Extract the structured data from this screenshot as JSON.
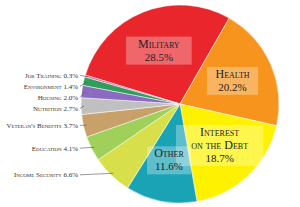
{
  "chart_data": {
    "type": "pie",
    "categories": [
      "Military",
      "Health",
      "Interest on the Debt",
      "Other",
      "Income Security",
      "Education",
      "Veteran's Benefits",
      "Nutrition",
      "Housing",
      "Environment",
      "Job Training"
    ],
    "values": [
      28.5,
      20.2,
      18.7,
      11.6,
      6.6,
      4.1,
      3.7,
      2.7,
      2.0,
      1.4,
      0.3
    ],
    "value_labels": [
      "28.5%",
      "20.2%",
      "18.7%",
      "11.6%",
      "6.6%",
      "4.1%",
      "3.7%",
      "2.7%",
      "2.0%",
      "1.4%",
      "0.3%"
    ],
    "colors": [
      "#e8262b",
      "#f7941d",
      "#fff200",
      "#1aa3b5",
      "#d7e04a",
      "#9fd05a",
      "#c8a06a",
      "#c0c0c0",
      "#8b6bbf",
      "#2e9e5a",
      "#e6559b"
    ],
    "data_labels": true
  }
}
